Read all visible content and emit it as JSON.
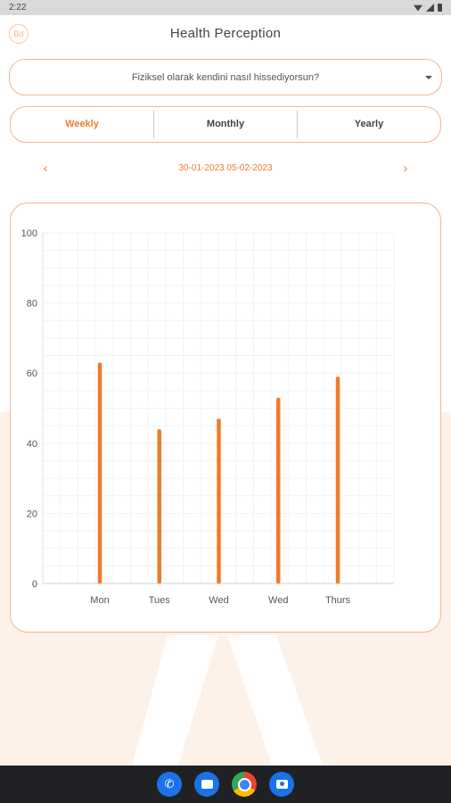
{
  "status_bar": {
    "time": "2:22"
  },
  "header": {
    "title": "Health Perception",
    "logo_text": "Bd"
  },
  "question": {
    "selected": "Fiziksel olarak kendini nasıl hissediyorsun?"
  },
  "tabs": [
    {
      "label": "Weekly",
      "active": true
    },
    {
      "label": "Monthly",
      "active": false
    },
    {
      "label": "Yearly",
      "active": false
    }
  ],
  "date_nav": {
    "range": "30-01-2023 05-02-2023",
    "prev": "‹",
    "next": "›"
  },
  "colors": {
    "accent": "#f07a2d",
    "border": "#f3b58f",
    "background_tint": "#fdf1e8"
  },
  "chart_data": {
    "type": "bar",
    "categories": [
      "Mon",
      "Tues",
      "Wed",
      "Wed",
      "Thurs"
    ],
    "values": [
      63,
      44,
      47,
      53,
      59
    ],
    "ylim": [
      0,
      100
    ],
    "yticks": [
      0,
      20,
      40,
      60,
      80,
      100
    ],
    "grid": true,
    "bar_color": "#f07a2d"
  },
  "dock": [
    {
      "name": "phone-icon"
    },
    {
      "name": "messages-icon"
    },
    {
      "name": "chrome-icon"
    },
    {
      "name": "camera-icon"
    }
  ]
}
